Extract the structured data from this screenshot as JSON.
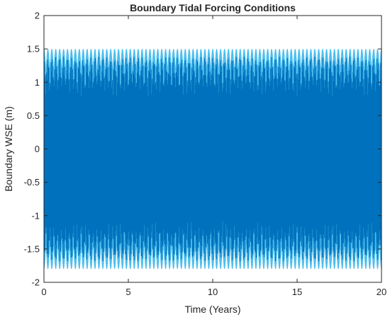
{
  "chart_data": {
    "type": "line",
    "title": "Boundary Tidal Forcing Conditions",
    "xlabel": "Time (Years)",
    "ylabel": "Boundary WSE (m)",
    "xlim": [
      0,
      20
    ],
    "ylim": [
      -2,
      2
    ],
    "xticks": [
      0,
      5,
      10,
      15,
      20
    ],
    "xtick_labels": [
      "0",
      "5",
      "10",
      "15",
      "20"
    ],
    "yticks": [
      -2,
      -1.5,
      -1,
      -0.5,
      0,
      0.5,
      1,
      1.5,
      2
    ],
    "ytick_labels": [
      "-2",
      "-1.5",
      "-1",
      "-0.5",
      "0",
      "0.5",
      "1",
      "1.5",
      "2"
    ],
    "grid": false,
    "legend": "none",
    "series": [
      {
        "color": "#0072BD",
        "highlight_color": "#4DBEEE",
        "envelope_x": [
          0,
          1,
          2,
          3,
          4,
          5,
          6,
          7,
          8,
          9,
          10,
          11,
          12,
          13,
          14,
          15,
          16,
          17,
          18,
          19,
          20
        ],
        "envelope_max": [
          1.5,
          1.5,
          1.5,
          1.5,
          1.5,
          1.5,
          1.5,
          1.5,
          1.5,
          1.5,
          1.5,
          1.5,
          1.5,
          1.5,
          1.5,
          1.5,
          1.5,
          1.5,
          1.5,
          1.5,
          1.5
        ],
        "envelope_min": [
          -1.8,
          -1.8,
          -1.8,
          -1.8,
          -1.8,
          -1.8,
          -1.8,
          -1.8,
          -1.8,
          -1.8,
          -1.8,
          -1.8,
          -1.8,
          -1.8,
          -1.8,
          -1.8,
          -1.8,
          -1.8,
          -1.8,
          -1.8,
          -1.8
        ]
      }
    ]
  }
}
